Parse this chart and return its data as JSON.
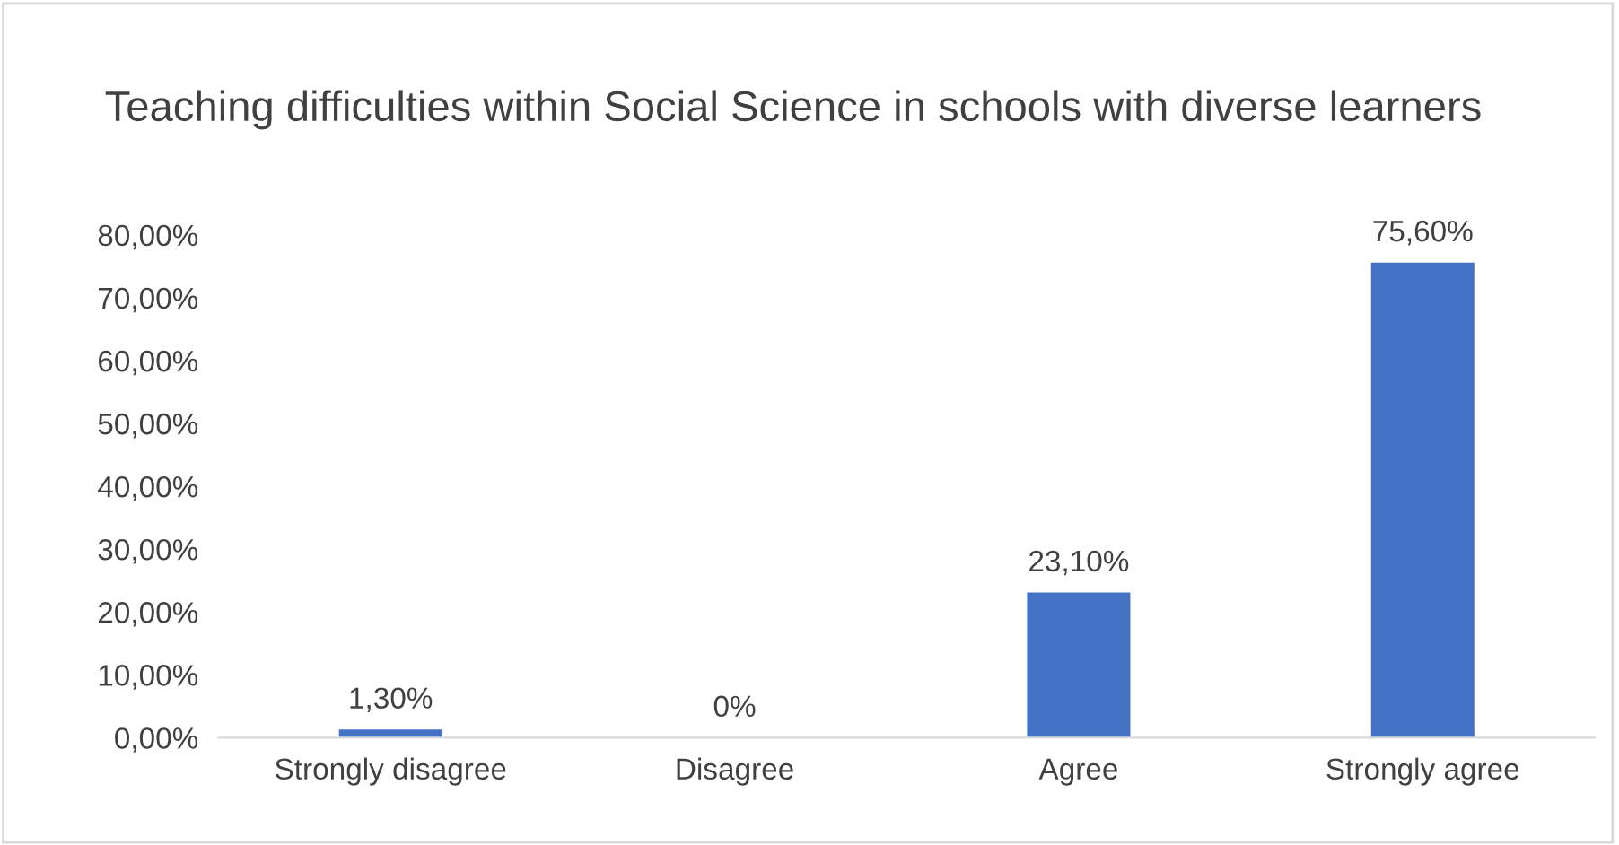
{
  "chart_data": {
    "type": "bar",
    "title": "Teaching difficulties within Social Science in schools with diverse learners",
    "categories": [
      "Strongly disagree",
      "Disagree",
      "Agree",
      "Strongly agree"
    ],
    "values": [
      1.3,
      0,
      23.1,
      75.6
    ],
    "color": "#4472c4",
    "value_labels": [
      "1,30%",
      "0%",
      "23,10%",
      "75,60%"
    ],
    "ylim": [
      0,
      80
    ],
    "yticks": [
      {
        "value": 0,
        "label": "0,00%"
      },
      {
        "value": 10,
        "label": "10,00%"
      },
      {
        "value": 20,
        "label": "20,00%"
      },
      {
        "value": 30,
        "label": "30,00%"
      },
      {
        "value": 40,
        "label": "40,00%"
      },
      {
        "value": 50,
        "label": "50,00%"
      },
      {
        "value": 60,
        "label": "60,00%"
      },
      {
        "value": 70,
        "label": "70,00%"
      },
      {
        "value": 80,
        "label": "80,00%"
      }
    ],
    "grid": false,
    "legend": false
  }
}
